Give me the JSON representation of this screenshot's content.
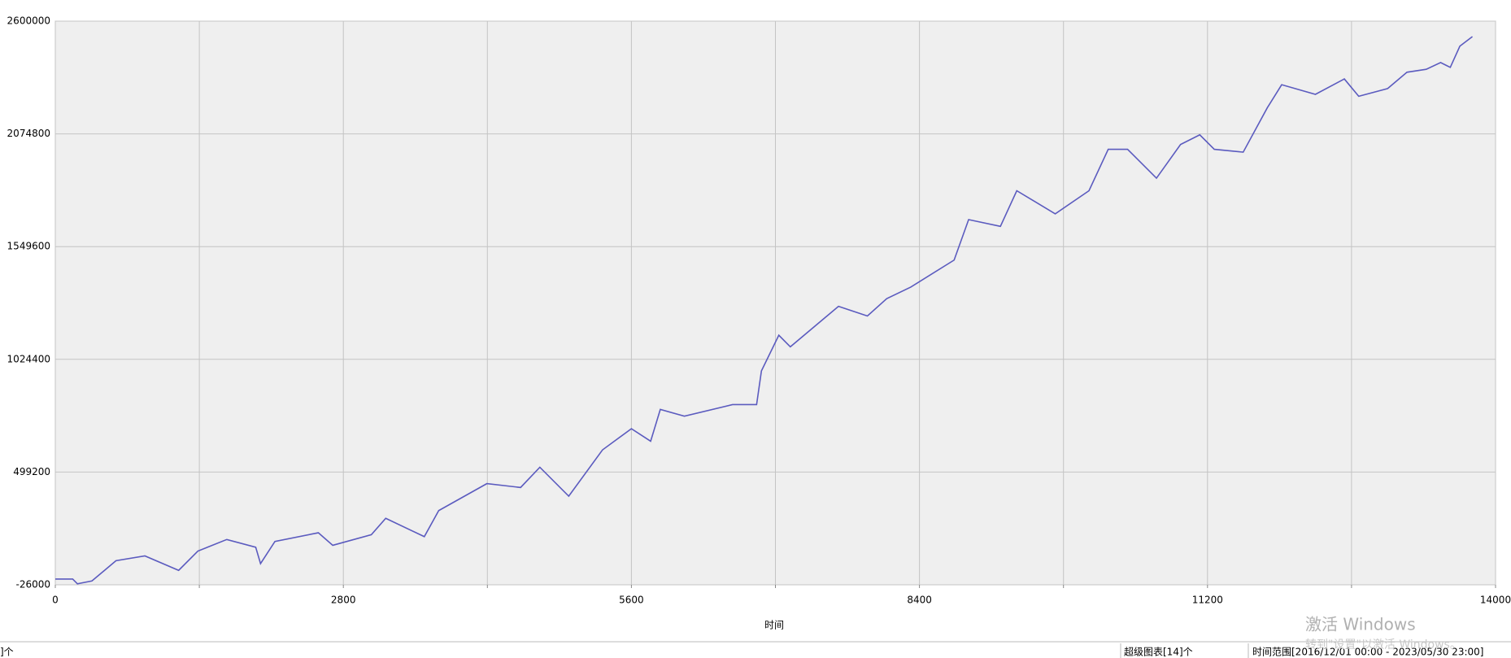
{
  "chart_data": {
    "type": "line",
    "x_label": "时间",
    "xlim": [
      0,
      14000
    ],
    "xticks": [
      0,
      2800,
      5600,
      8400,
      11200,
      14000
    ],
    "x_minor_gridlines": [
      1400,
      4200,
      7000,
      9800,
      12600
    ],
    "ylim": [
      -26000,
      2600000
    ],
    "yticks": [
      -26000,
      499200,
      1024400,
      1549600,
      2074800,
      2600000
    ],
    "grid": true,
    "x": [
      0,
      169,
      215,
      356,
      590,
      871,
      1199,
      1386,
      1667,
      1948,
      1995,
      2135,
      2557,
      2697,
      3072,
      3212,
      3587,
      3727,
      4195,
      4523,
      4710,
      4991,
      5319,
      5600,
      5787,
      5881,
      6115,
      6583,
      6817,
      6864,
      7033,
      7145,
      7613,
      7894,
      8082,
      8316,
      8737,
      8878,
      9187,
      9346,
      9720,
      10048,
      10235,
      10423,
      10704,
      10938,
      11125,
      11266,
      11547,
      11781,
      11921,
      12249,
      12530,
      12670,
      12951,
      13139,
      13326,
      13466,
      13560,
      13653,
      13775
    ],
    "series": [
      {
        "color": "#5b5bbf",
        "values": [
          934,
          934,
          -21500,
          -8000,
          86200,
          108700,
          41300,
          131100,
          185000,
          149100,
          72800,
          176000,
          216400,
          158000,
          207400,
          283700,
          198400,
          319700,
          445300,
          427400,
          521700,
          387000,
          602500,
          701200,
          642900,
          791000,
          759600,
          813400,
          813400,
          970600,
          1136700,
          1082800,
          1271300,
          1226400,
          1307200,
          1361100,
          1486800,
          1675300,
          1643900,
          1810000,
          1702300,
          1810000,
          2003000,
          2003000,
          1868400,
          2025500,
          2070400,
          2003000,
          1989600,
          2196100,
          2303800,
          2258900,
          2330700,
          2249900,
          2285800,
          2362100,
          2375600,
          2407000,
          2384600,
          2483400,
          2528200
        ]
      }
    ]
  },
  "status_bar": {
    "left": "]个",
    "charts": "超级图表[14]个",
    "range": "时间范围[2016/12/01 00:00 - 2023/05/30 23:00]"
  },
  "watermark": {
    "title": "激活 Windows",
    "hint": "转到\"设置\"以激活 Windows。"
  }
}
